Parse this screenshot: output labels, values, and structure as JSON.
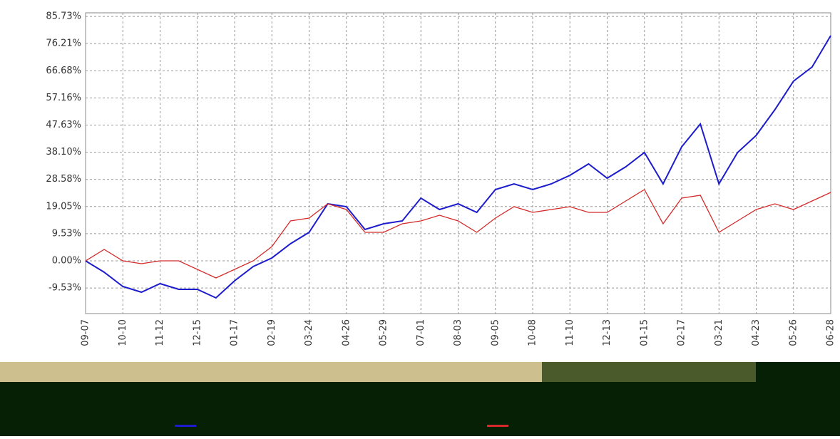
{
  "chart_data": {
    "type": "line",
    "categories": [
      "09-07",
      null,
      "10-10",
      null,
      "11-12",
      null,
      "12-15",
      null,
      "01-17",
      null,
      "02-19",
      null,
      "03-24",
      null,
      "04-26",
      null,
      "05-29",
      null,
      "07-01",
      null,
      "08-03",
      null,
      "09-05",
      null,
      "10-08",
      null,
      "11-10",
      null,
      "12-13",
      null,
      "01-15",
      null,
      "02-17",
      null,
      "03-21",
      null,
      "04-23",
      null,
      "05-26",
      null,
      "06-28"
    ],
    "series": [
      {
        "color": "#1c1ccc",
        "values": [
          0,
          -4,
          -9,
          -11,
          -8,
          -10,
          -10,
          -13,
          -7,
          -2,
          1,
          6,
          10,
          20,
          19,
          11,
          13,
          14,
          22,
          18,
          20,
          17,
          25,
          27,
          25,
          27,
          30,
          34,
          29,
          33,
          38,
          27,
          40,
          48,
          27,
          38,
          44,
          53,
          63,
          68,
          79
        ]
      },
      {
        "color": "#d42a2a",
        "values": [
          0,
          4,
          0,
          -1,
          0,
          0,
          -3,
          -6,
          -3,
          0,
          5,
          14,
          15,
          20,
          18,
          10,
          10,
          13,
          14,
          16,
          14,
          10,
          15,
          19,
          17,
          18,
          19,
          17,
          17,
          21,
          25,
          13,
          22,
          23,
          10,
          14,
          18,
          20,
          18,
          21,
          24
        ]
      }
    ],
    "ylim": [
      -18.5,
      87
    ],
    "yticks": [
      {
        "value": -9.53,
        "label": "-9.53%"
      },
      {
        "value": 0,
        "label": "0.00%"
      },
      {
        "value": 9.53,
        "label": "9.53%"
      },
      {
        "value": 19.05,
        "label": "19.05%"
      },
      {
        "value": 28.58,
        "label": "28.58%"
      },
      {
        "value": 38.1,
        "label": "38.10%"
      },
      {
        "value": 47.63,
        "label": "47.63%"
      },
      {
        "value": 57.16,
        "label": "57.16%"
      },
      {
        "value": 66.68,
        "label": "66.68%"
      },
      {
        "value": 76.21,
        "label": "76.21%"
      },
      {
        "value": 85.73,
        "label": "85.73%"
      }
    ],
    "grid": true
  }
}
